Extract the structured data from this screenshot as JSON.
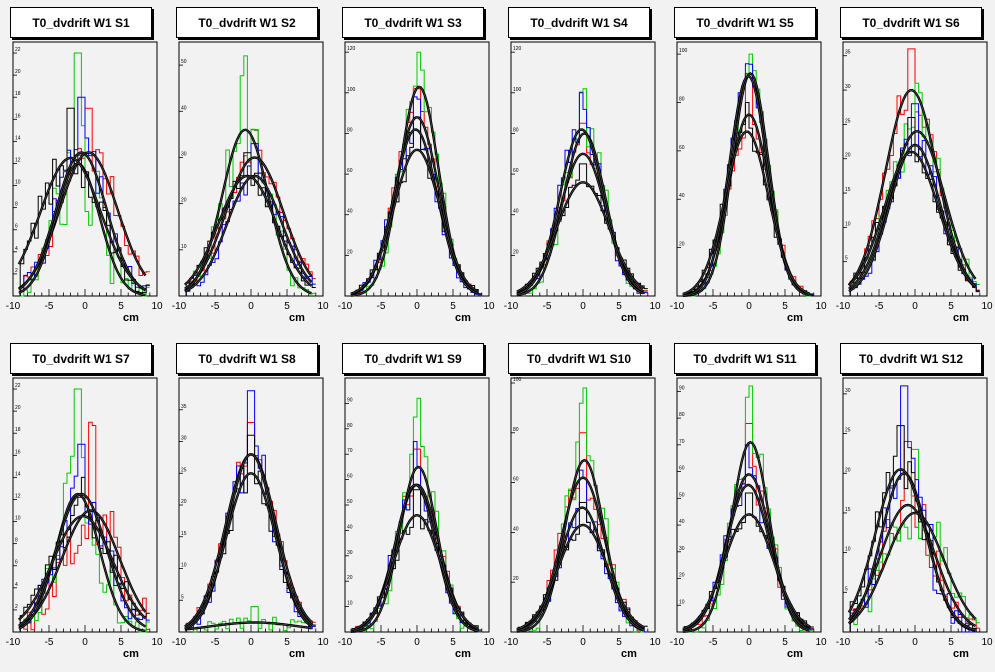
{
  "colors": {
    "series": [
      "#ff0000",
      "#00cc00",
      "#0000ff",
      "#000000"
    ],
    "fit": "#000000",
    "frame": "#000000",
    "pad": "#f2f2f2",
    "background": "#e8e8e8"
  },
  "chart_data": [
    {
      "type": "histogram",
      "title": "T0_dvdrift W1 S1",
      "xlabel": "cm",
      "xlim": [
        -10,
        10
      ],
      "ylim": [
        0,
        23
      ],
      "yticks": [
        2,
        4,
        6,
        8,
        10,
        12,
        14,
        16,
        18,
        20,
        22
      ],
      "xticks": [
        -10,
        -5,
        0,
        5,
        10
      ],
      "series": [
        {
          "mean": 0.5,
          "sigma": 4.0,
          "amp": 13,
          "peak": 17
        },
        {
          "mean": -1.0,
          "sigma": 3.0,
          "amp": 12,
          "peak": 22
        },
        {
          "mean": -0.5,
          "sigma": 3.5,
          "amp": 13,
          "peak": 18
        },
        {
          "mean": -2.0,
          "sigma": 4.2,
          "amp": 12.5,
          "peak": 17
        }
      ]
    },
    {
      "type": "histogram",
      "title": "T0_dvdrift W1 S2",
      "xlabel": "cm",
      "xlim": [
        -10,
        10
      ],
      "ylim": [
        0,
        55
      ],
      "yticks": [
        10,
        20,
        30,
        40,
        50
      ],
      "xticks": [
        -10,
        -5,
        0,
        5,
        10
      ],
      "series": [
        {
          "mean": 0.5,
          "sigma": 4.0,
          "amp": 30,
          "peak": 36
        },
        {
          "mean": -0.8,
          "sigma": 3.2,
          "amp": 36,
          "peak": 52
        },
        {
          "mean": 0.5,
          "sigma": 3.8,
          "amp": 26,
          "peak": 33
        },
        {
          "mean": -0.5,
          "sigma": 4.0,
          "amp": 26,
          "peak": 31
        }
      ]
    },
    {
      "type": "histogram",
      "title": "T0_dvdrift W1 S3",
      "xlabel": "cm",
      "xlim": [
        -10,
        10
      ],
      "ylim": [
        0,
        125
      ],
      "yticks": [
        20,
        40,
        60,
        80,
        100,
        120
      ],
      "xticks": [
        -10,
        -5,
        0,
        5,
        10
      ],
      "series": [
        {
          "mean": 0.0,
          "sigma": 3.0,
          "amp": 88,
          "peak": 102
        },
        {
          "mean": 0.3,
          "sigma": 2.7,
          "amp": 103,
          "peak": 120
        },
        {
          "mean": -0.2,
          "sigma": 3.0,
          "amp": 82,
          "peak": 98
        },
        {
          "mean": 0.0,
          "sigma": 3.2,
          "amp": 72,
          "peak": 88
        }
      ]
    },
    {
      "type": "histogram",
      "title": "T0_dvdrift W1 S4",
      "xlabel": "cm",
      "xlim": [
        -10,
        10
      ],
      "ylim": [
        0,
        125
      ],
      "yticks": [
        20,
        40,
        60,
        80,
        100,
        120
      ],
      "xticks": [
        -10,
        -5,
        0,
        5,
        10
      ],
      "series": [
        {
          "mean": 0.0,
          "sigma": 3.2,
          "amp": 70,
          "peak": 85
        },
        {
          "mean": 0.2,
          "sigma": 2.9,
          "amp": 80,
          "peak": 102
        },
        {
          "mean": -0.2,
          "sigma": 3.0,
          "amp": 82,
          "peak": 100
        },
        {
          "mean": 0.0,
          "sigma": 3.6,
          "amp": 56,
          "peak": 65
        }
      ]
    },
    {
      "type": "histogram",
      "title": "T0_dvdrift W1 S5",
      "xlabel": "cm",
      "xlim": [
        -10,
        10
      ],
      "ylim": [
        0,
        105
      ],
      "yticks": [
        20,
        40,
        60,
        80,
        100
      ],
      "xticks": [
        -10,
        -5,
        0,
        5,
        10
      ],
      "series": [
        {
          "mean": 0.0,
          "sigma": 2.8,
          "amp": 75,
          "peak": 92
        },
        {
          "mean": 0.2,
          "sigma": 2.5,
          "amp": 92,
          "peak": 100
        },
        {
          "mean": -0.1,
          "sigma": 2.6,
          "amp": 91,
          "peak": 96
        },
        {
          "mean": -0.3,
          "sigma": 3.0,
          "amp": 68,
          "peak": 80
        }
      ]
    },
    {
      "type": "histogram",
      "title": "T0_dvdrift W1 S6",
      "xlabel": "cm",
      "xlim": [
        -10,
        10
      ],
      "ylim": [
        0,
        37
      ],
      "yticks": [
        5,
        10,
        15,
        20,
        25,
        30,
        35
      ],
      "xticks": [
        -10,
        -5,
        0,
        5,
        10
      ],
      "series": [
        {
          "mean": -0.5,
          "sigma": 3.6,
          "amp": 30,
          "peak": 36
        },
        {
          "mean": 0.3,
          "sigma": 3.8,
          "amp": 24,
          "peak": 31
        },
        {
          "mean": 0.0,
          "sigma": 3.5,
          "amp": 22,
          "peak": 28
        },
        {
          "mean": -0.5,
          "sigma": 3.8,
          "amp": 21,
          "peak": 26
        }
      ]
    },
    {
      "type": "histogram",
      "title": "T0_dvdrift W1 S7",
      "xlabel": "cm",
      "xlim": [
        -10,
        10
      ],
      "ylim": [
        0,
        23
      ],
      "yticks": [
        2,
        4,
        6,
        8,
        10,
        12,
        14,
        16,
        18,
        20,
        22
      ],
      "xticks": [
        -10,
        -5,
        0,
        5,
        10
      ],
      "series": [
        {
          "mean": 0.8,
          "sigma": 4.0,
          "amp": 11,
          "peak": 19
        },
        {
          "mean": -1.0,
          "sigma": 3.0,
          "amp": 12.5,
          "peak": 22
        },
        {
          "mean": -0.5,
          "sigma": 3.5,
          "amp": 12.5,
          "peak": 17
        },
        {
          "mean": -0.3,
          "sigma": 4.2,
          "amp": 10.5,
          "peak": 14
        }
      ]
    },
    {
      "type": "histogram",
      "title": "T0_dvdrift W1 S8",
      "xlabel": "cm",
      "xlim": [
        -10,
        10
      ],
      "ylim": [
        0,
        40
      ],
      "yticks": [
        5,
        10,
        15,
        20,
        25,
        30,
        35
      ],
      "xticks": [
        -10,
        -5,
        0,
        5,
        10
      ],
      "series": [
        {
          "mean": 0.0,
          "sigma": 3.5,
          "amp": 28,
          "peak": 33
        },
        {
          "mean": 0.5,
          "sigma": 6.0,
          "amp": 1.5,
          "peak": 4
        },
        {
          "mean": 0.0,
          "sigma": 3.2,
          "amp": 28,
          "peak": 38
        },
        {
          "mean": 0.0,
          "sigma": 3.4,
          "amp": 25,
          "peak": 31
        }
      ]
    },
    {
      "type": "histogram",
      "title": "T0_dvdrift W1 S9",
      "xlabel": "cm",
      "xlim": [
        -10,
        10
      ],
      "ylim": [
        0,
        100
      ],
      "yticks": [
        10,
        20,
        30,
        40,
        50,
        60,
        70,
        80,
        90
      ],
      "xticks": [
        -10,
        -5,
        0,
        5,
        10
      ],
      "series": [
        {
          "mean": 0.0,
          "sigma": 3.0,
          "amp": 58,
          "peak": 72
        },
        {
          "mean": 0.2,
          "sigma": 2.6,
          "amp": 65,
          "peak": 92
        },
        {
          "mean": -0.2,
          "sigma": 2.8,
          "amp": 58,
          "peak": 75
        },
        {
          "mean": 0.0,
          "sigma": 3.2,
          "amp": 46,
          "peak": 56
        }
      ]
    },
    {
      "type": "histogram",
      "title": "T0_dvdrift W1 S10",
      "xlabel": "cm",
      "xlim": [
        -10,
        10
      ],
      "ylim": [
        0,
        102
      ],
      "yticks": [
        20,
        40,
        60,
        80,
        100
      ],
      "xticks": [
        -10,
        -5,
        0,
        5,
        10
      ],
      "series": [
        {
          "mean": 0.0,
          "sigma": 3.0,
          "amp": 62,
          "peak": 80
        },
        {
          "mean": 0.2,
          "sigma": 2.7,
          "amp": 69,
          "peak": 98
        },
        {
          "mean": -0.1,
          "sigma": 3.0,
          "amp": 50,
          "peak": 65
        },
        {
          "mean": 0.0,
          "sigma": 3.4,
          "amp": 43,
          "peak": 52
        }
      ]
    },
    {
      "type": "histogram",
      "title": "T0_dvdrift W1 S11",
      "xlabel": "cm",
      "xlim": [
        -10,
        10
      ],
      "ylim": [
        0,
        95
      ],
      "yticks": [
        10,
        20,
        30,
        40,
        50,
        60,
        70,
        80,
        90
      ],
      "xticks": [
        -10,
        -5,
        0,
        5,
        10
      ],
      "series": [
        {
          "mean": 0.0,
          "sigma": 3.0,
          "amp": 59,
          "peak": 78
        },
        {
          "mean": 0.2,
          "sigma": 2.6,
          "amp": 71,
          "peak": 92
        },
        {
          "mean": -0.1,
          "sigma": 3.0,
          "amp": 55,
          "peak": 70
        },
        {
          "mean": 0.0,
          "sigma": 3.4,
          "amp": 44,
          "peak": 52
        }
      ]
    },
    {
      "type": "histogram",
      "title": "T0_dvdrift W1 S12",
      "xlabel": "cm",
      "xlim": [
        -10,
        10
      ],
      "ylim": [
        0,
        32
      ],
      "yticks": [
        5,
        10,
        15,
        20,
        25,
        30
      ],
      "xticks": [
        -10,
        -5,
        0,
        5,
        10
      ],
      "series": [
        {
          "mean": -1.0,
          "sigma": 3.8,
          "amp": 16,
          "peak": 24
        },
        {
          "mean": 0.0,
          "sigma": 4.0,
          "amp": 15,
          "peak": 23
        },
        {
          "mean": -1.5,
          "sigma": 3.2,
          "amp": 20,
          "peak": 31
        },
        {
          "mean": -2.0,
          "sigma": 3.5,
          "amp": 20.5,
          "peak": 26
        }
      ]
    }
  ]
}
